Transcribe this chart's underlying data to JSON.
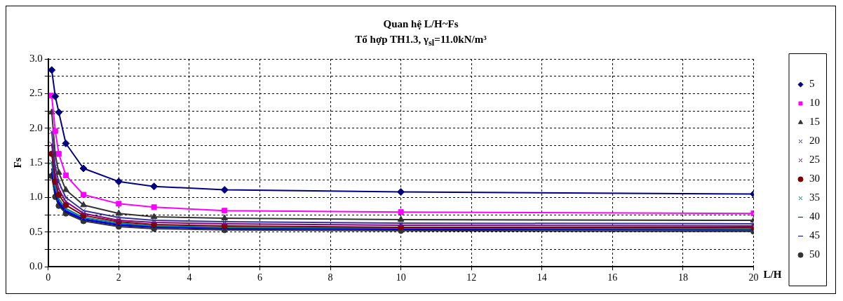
{
  "chart_data": {
    "type": "line",
    "title": "Quan hệ L/H~Fs",
    "subtitle": "Tổ hợp TH1.3, γ$_{sl}$=11.0kN/m³",
    "xlabel": "L/H",
    "ylabel": "Fs",
    "x": [
      0.1,
      0.2,
      0.3,
      0.5,
      1,
      2,
      3,
      5,
      10,
      20
    ],
    "series": [
      {
        "name": "5",
        "color": "#000080",
        "marker": "diamond",
        "values": [
          2.84,
          2.46,
          2.23,
          1.78,
          1.42,
          1.23,
          1.16,
          1.11,
          1.08,
          1.05
        ]
      },
      {
        "name": "10",
        "color": "#ff00ff",
        "marker": "square",
        "values": [
          2.47,
          1.96,
          1.63,
          1.32,
          1.04,
          0.91,
          0.86,
          0.81,
          0.79,
          0.77
        ]
      },
      {
        "name": "15",
        "color": "#333333",
        "marker": "triangle",
        "values": [
          2.23,
          1.62,
          1.36,
          1.11,
          0.89,
          0.77,
          0.72,
          0.7,
          0.68,
          0.67
        ]
      },
      {
        "name": "20",
        "color": "#333399",
        "marker": "cross",
        "values": [
          1.95,
          1.45,
          1.22,
          1.0,
          0.81,
          0.71,
          0.67,
          0.65,
          0.63,
          0.62
        ]
      },
      {
        "name": "25",
        "color": "#800080",
        "marker": "cross",
        "values": [
          1.77,
          1.33,
          1.12,
          0.94,
          0.77,
          0.67,
          0.64,
          0.62,
          0.6,
          0.59
        ]
      },
      {
        "name": "30",
        "color": "#800000",
        "marker": "circle",
        "values": [
          1.63,
          1.23,
          1.04,
          0.89,
          0.74,
          0.65,
          0.61,
          0.59,
          0.57,
          0.57
        ]
      },
      {
        "name": "35",
        "color": "#008080",
        "marker": "cross",
        "values": [
          1.51,
          1.15,
          0.98,
          0.84,
          0.71,
          0.63,
          0.59,
          0.57,
          0.56,
          0.55
        ]
      },
      {
        "name": "40",
        "color": "#0000ff",
        "marker": "none",
        "values": [
          1.42,
          1.09,
          0.94,
          0.81,
          0.69,
          0.61,
          0.58,
          0.56,
          0.55,
          0.54
        ]
      },
      {
        "name": "45",
        "color": "#000080",
        "marker": "none",
        "values": [
          1.37,
          1.05,
          0.91,
          0.79,
          0.68,
          0.6,
          0.57,
          0.55,
          0.54,
          0.53
        ]
      },
      {
        "name": "50",
        "color": "#333333",
        "marker": "circle",
        "values": [
          1.31,
          1.01,
          0.88,
          0.77,
          0.66,
          0.58,
          0.55,
          0.53,
          0.52,
          0.51
        ]
      }
    ],
    "xlim": [
      0,
      20
    ],
    "xticks": [
      0,
      2,
      4,
      6,
      8,
      10,
      12,
      14,
      16,
      18,
      20
    ],
    "ylim": [
      0,
      3
    ],
    "yticks": [
      {
        "value": 0,
        "label": "0.0"
      },
      {
        "value": 0.25,
        "label": null
      },
      {
        "value": 0.5,
        "label": "0.5"
      },
      {
        "value": 0.75,
        "label": null
      },
      {
        "value": 1,
        "label": "1.0"
      },
      {
        "value": 1.25,
        "label": null
      },
      {
        "value": 1.5,
        "label": "1.5"
      },
      {
        "value": 1.75,
        "label": null
      },
      {
        "value": 2,
        "label": "2.0"
      },
      {
        "value": 2.25,
        "label": null
      },
      {
        "value": 2.5,
        "label": "2.5"
      },
      {
        "value": 2.75,
        "label": null
      },
      {
        "value": 3,
        "label": "3.0"
      }
    ],
    "grid": true,
    "legend": "right",
    "line_style": "solid"
  }
}
